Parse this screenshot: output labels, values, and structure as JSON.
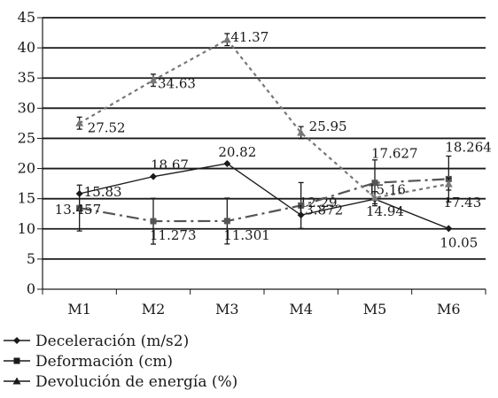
{
  "chart_data": {
    "type": "line",
    "categories": [
      "M1",
      "M2",
      "M3",
      "M4",
      "M5",
      "M6"
    ],
    "ylim": [
      0,
      45
    ],
    "y_ticks": [
      "0",
      "5",
      "10",
      "15",
      "20",
      "25",
      "30",
      "35",
      "40",
      "45"
    ],
    "grid": "horizontal",
    "legend_position": "bottom-left",
    "series": [
      {
        "name": "Deceleración (m/s2)",
        "values": [
          15.83,
          18.67,
          20.82,
          12.29,
          14.94,
          10.05
        ],
        "labels": [
          "15.83",
          "18.67",
          "20.82",
          "12.29",
          "14.94",
          "10.05"
        ],
        "errors": [
          0,
          0,
          0,
          0,
          0,
          0
        ],
        "color": "#1a1a1a",
        "line": "solid",
        "marker": "diamond"
      },
      {
        "name": "Deformación (cm)",
        "values": [
          13.457,
          11.273,
          11.301,
          13.872,
          17.627,
          18.264
        ],
        "labels": [
          "13.457",
          "11.273",
          "11.301",
          "13.872",
          "17.627",
          "18.264"
        ],
        "errors": [
          3.8,
          3.8,
          3.8,
          3.8,
          3.8,
          3.8
        ],
        "color": "#555555",
        "line": "dashdot",
        "marker": "square"
      },
      {
        "name": "Devolución de energía (%)",
        "values": [
          27.52,
          34.63,
          41.37,
          25.95,
          15.16,
          17.43
        ],
        "labels": [
          "27.52",
          "34.63",
          "41.37",
          "25.95",
          "15.16",
          "17.43"
        ],
        "errors": [
          1.0,
          1.0,
          1.0,
          1.0,
          1.0,
          1.0
        ],
        "color": "#777777",
        "line": "dotted",
        "marker": "triangle"
      }
    ]
  }
}
